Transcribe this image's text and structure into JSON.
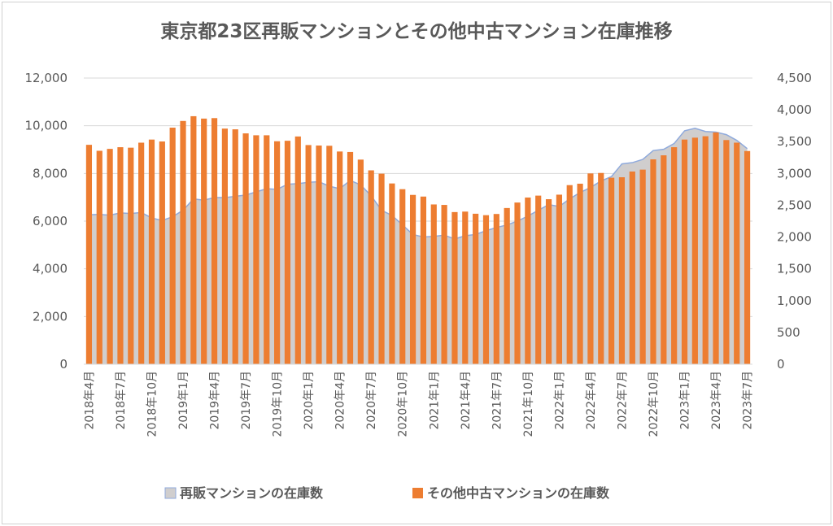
{
  "chart_data": {
    "type": "bar+area",
    "title": "東京都23区再販マンションとその他中古マンション在庫推移",
    "xlabel": "",
    "y_left": {
      "min": 0,
      "max": 12000,
      "ticks": [
        "0",
        "2,000",
        "4,000",
        "6,000",
        "8,000",
        "10,000",
        "12,000"
      ]
    },
    "y_right": {
      "min": 0,
      "max": 4500,
      "ticks": [
        "0",
        "500",
        "1,000",
        "1,500",
        "2,000",
        "2,500",
        "3,000",
        "3,500",
        "4,000",
        "4,500"
      ]
    },
    "x_tick_labels": [
      "2018年4月",
      "2018年7月",
      "2018年10月",
      "2019年1月",
      "2019年4月",
      "2019年7月",
      "2019年10月",
      "2020年1月",
      "2020年4月",
      "2020年7月",
      "2020年10月",
      "2021年1月",
      "2021年4月",
      "2021年7月",
      "2021年10月",
      "2022年1月",
      "2022年4月",
      "2022年7月",
      "2022年10月",
      "2023年1月",
      "2023年4月",
      "2023年7月"
    ],
    "categories": [
      "2018-04",
      "2018-05",
      "2018-06",
      "2018-07",
      "2018-08",
      "2018-09",
      "2018-10",
      "2018-11",
      "2018-12",
      "2019-01",
      "2019-02",
      "2019-03",
      "2019-04",
      "2019-05",
      "2019-06",
      "2019-07",
      "2019-08",
      "2019-09",
      "2019-10",
      "2019-11",
      "2019-12",
      "2020-01",
      "2020-02",
      "2020-03",
      "2020-04",
      "2020-05",
      "2020-06",
      "2020-07",
      "2020-08",
      "2020-09",
      "2020-10",
      "2020-11",
      "2020-12",
      "2021-01",
      "2021-02",
      "2021-03",
      "2021-04",
      "2021-05",
      "2021-06",
      "2021-07",
      "2021-08",
      "2021-09",
      "2021-10",
      "2021-11",
      "2021-12",
      "2022-01",
      "2022-02",
      "2022-03",
      "2022-04",
      "2022-05",
      "2022-06",
      "2022-07",
      "2022-08",
      "2022-09",
      "2022-10",
      "2022-11",
      "2022-12",
      "2023-01",
      "2023-02",
      "2023-03",
      "2023-04",
      "2023-05",
      "2023-06",
      "2023-07"
    ],
    "series": [
      {
        "name": "再販マンションの在庫数",
        "type": "area",
        "axis": "right",
        "color": "#d0cece",
        "line_color": "#8faadc",
        "values": [
          2350,
          2355,
          2345,
          2380,
          2370,
          2385,
          2300,
          2260,
          2320,
          2420,
          2600,
          2580,
          2620,
          2620,
          2640,
          2660,
          2710,
          2760,
          2750,
          2830,
          2840,
          2860,
          2870,
          2800,
          2760,
          2890,
          2820,
          2650,
          2420,
          2340,
          2190,
          2040,
          2000,
          2010,
          2030,
          1970,
          2020,
          2040,
          2100,
          2150,
          2190,
          2250,
          2330,
          2420,
          2510,
          2480,
          2600,
          2700,
          2780,
          2880,
          2950,
          3150,
          3170,
          3220,
          3360,
          3380,
          3470,
          3670,
          3710,
          3660,
          3650,
          3610,
          3520,
          3390
        ]
      },
      {
        "name": "その他中古マンションの在庫数",
        "type": "bar",
        "axis": "left",
        "color": "#ed7d31",
        "values": [
          9200,
          8950,
          9030,
          9100,
          9080,
          9290,
          9420,
          9340,
          9920,
          10200,
          10400,
          10300,
          10320,
          9880,
          9850,
          9680,
          9600,
          9600,
          9350,
          9370,
          9550,
          9190,
          9170,
          9160,
          8920,
          8900,
          8580,
          8130,
          7990,
          7580,
          7340,
          7100,
          7030,
          6700,
          6680,
          6380,
          6400,
          6310,
          6250,
          6300,
          6550,
          6780,
          6990,
          7070,
          6920,
          7110,
          7510,
          7570,
          8000,
          8020,
          7820,
          7840,
          8080,
          8160,
          8590,
          8760,
          9100,
          9420,
          9500,
          9560,
          9720,
          9400,
          9290,
          8940
        ]
      }
    ],
    "legend": [
      "再販マンションの在庫数",
      "その他中古マンションの在庫数"
    ],
    "legend_position": "bottom"
  }
}
